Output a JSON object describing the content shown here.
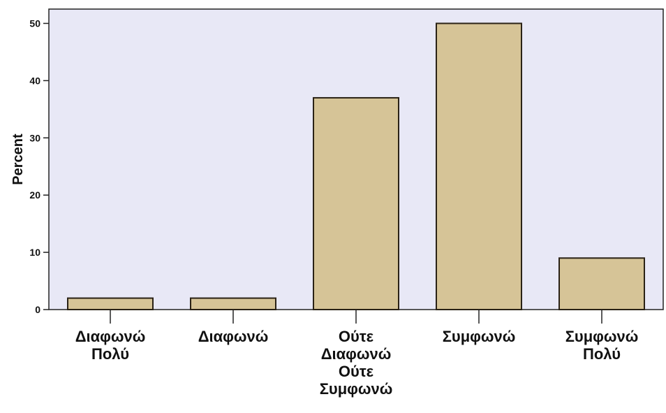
{
  "chart_data": {
    "type": "bar",
    "title": "",
    "xlabel": "",
    "ylabel": "Percent",
    "categories": [
      [
        "Διαφωνώ",
        "Πολύ"
      ],
      [
        "Διαφωνώ"
      ],
      [
        "Ούτε",
        "Διαφωνώ",
        "Ούτε",
        "Συμφωνώ"
      ],
      [
        "Συμφωνώ"
      ],
      [
        "Συμφωνώ",
        "Πολύ"
      ]
    ],
    "values": [
      2,
      2,
      37,
      50,
      9
    ],
    "ylim": [
      0,
      52.5
    ],
    "yticks": [
      0,
      10,
      20,
      30,
      40,
      50
    ],
    "grid": false,
    "colors": {
      "plot_background": "#e8e8f6",
      "bar_fill": "#d6c497",
      "bar_stroke": "#2a2216",
      "axis": "#222222"
    }
  }
}
